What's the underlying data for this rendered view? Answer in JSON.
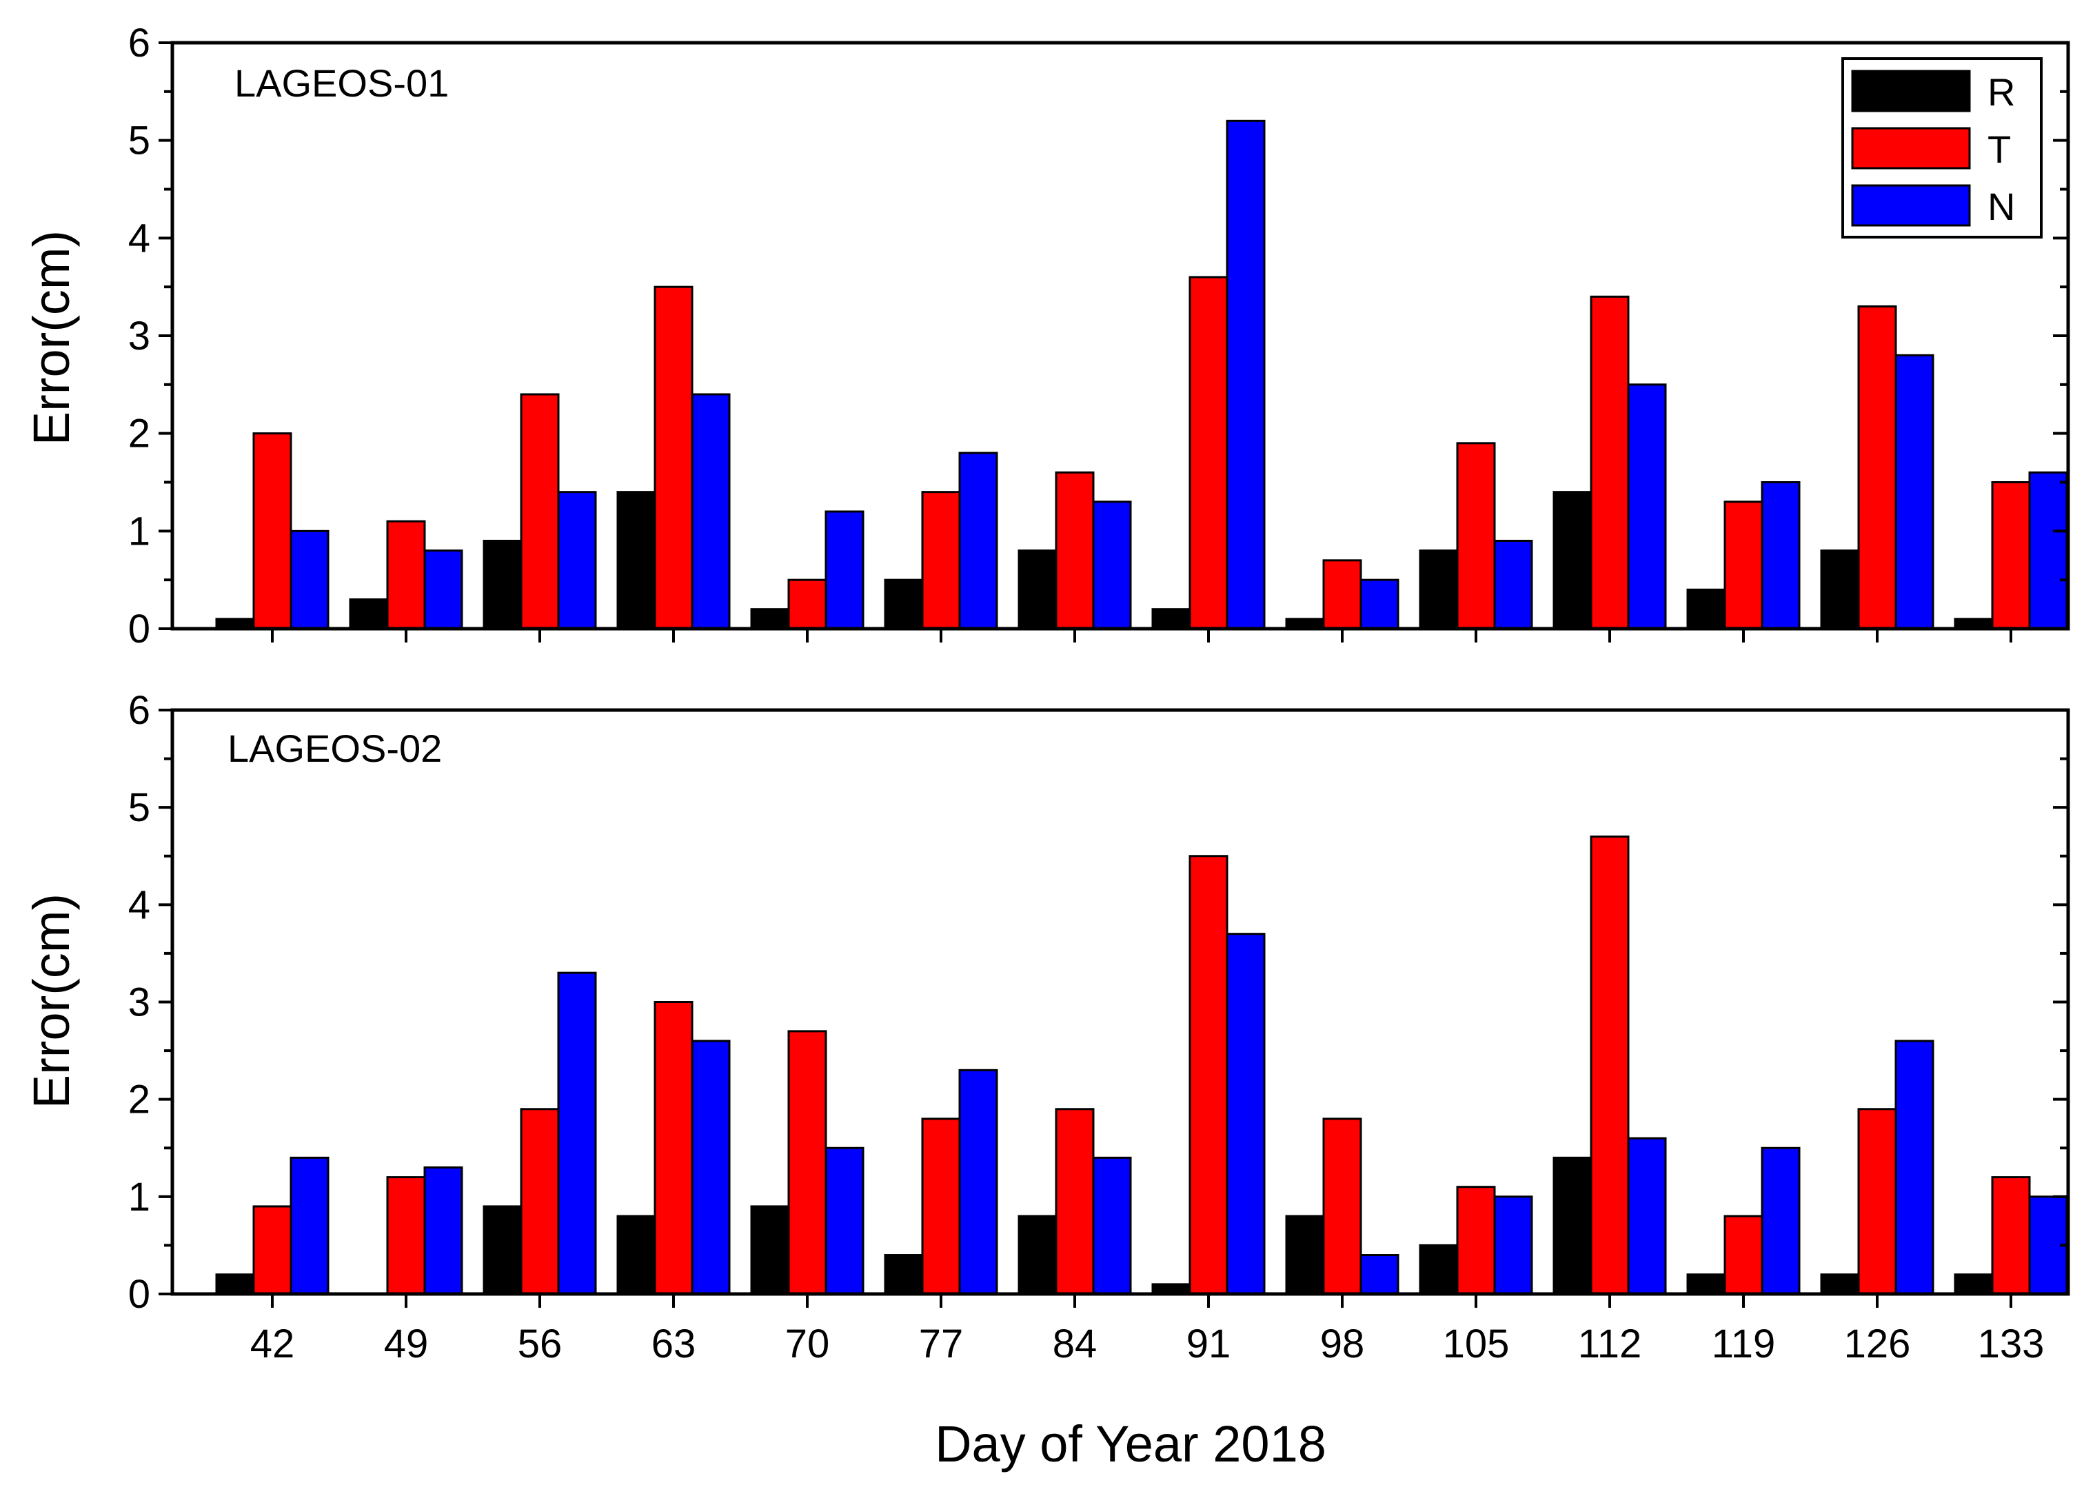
{
  "chart_data": [
    {
      "type": "bar",
      "panel_label": "LAGEOS-01",
      "categories": [
        "42",
        "49",
        "56",
        "63",
        "70",
        "77",
        "84",
        "91",
        "98",
        "105",
        "112",
        "119",
        "126",
        "133"
      ],
      "series": [
        {
          "name": "R",
          "color": "#000000",
          "values": [
            0.1,
            0.3,
            0.9,
            1.4,
            0.2,
            0.5,
            0.8,
            0.2,
            0.1,
            0.8,
            1.4,
            0.4,
            0.8,
            0.1
          ]
        },
        {
          "name": "T",
          "color": "#ff0000",
          "values": [
            2.0,
            1.1,
            2.4,
            3.5,
            0.5,
            1.4,
            1.6,
            3.6,
            0.7,
            1.9,
            3.4,
            1.3,
            3.3,
            1.5
          ]
        },
        {
          "name": "N",
          "color": "#0000ff",
          "values": [
            1.0,
            0.8,
            1.4,
            2.4,
            1.2,
            1.8,
            1.3,
            5.2,
            0.5,
            0.9,
            2.5,
            1.5,
            2.8,
            1.6
          ]
        }
      ],
      "ylabel": "Error(cm)",
      "yticks": [
        "0",
        "1",
        "2",
        "3",
        "4",
        "5",
        "6"
      ],
      "ylim": [
        0,
        6
      ],
      "legend_position": "top-right"
    },
    {
      "type": "bar",
      "panel_label": "LAGEOS-02",
      "categories": [
        "42",
        "49",
        "56",
        "63",
        "70",
        "77",
        "84",
        "91",
        "98",
        "105",
        "112",
        "119",
        "126",
        "133"
      ],
      "series": [
        {
          "name": "R",
          "color": "#000000",
          "values": [
            0.2,
            0.0,
            0.9,
            0.8,
            0.9,
            0.4,
            0.8,
            0.1,
            0.8,
            0.5,
            1.4,
            0.2,
            0.2,
            0.2
          ]
        },
        {
          "name": "T",
          "color": "#ff0000",
          "values": [
            0.9,
            1.2,
            1.9,
            3.0,
            2.7,
            1.8,
            1.9,
            4.5,
            1.8,
            1.1,
            4.7,
            0.8,
            1.9,
            1.2
          ]
        },
        {
          "name": "N",
          "color": "#0000ff",
          "values": [
            1.4,
            1.3,
            3.3,
            2.6,
            1.5,
            2.3,
            1.4,
            3.7,
            0.4,
            1.0,
            1.6,
            1.5,
            2.6,
            1.0
          ]
        }
      ],
      "ylabel": "Error(cm)",
      "yticks": [
        "0",
        "1",
        "2",
        "3",
        "4",
        "5",
        "6"
      ],
      "ylim": [
        0,
        6
      ],
      "xlabel": "Day of Year 2018"
    }
  ]
}
